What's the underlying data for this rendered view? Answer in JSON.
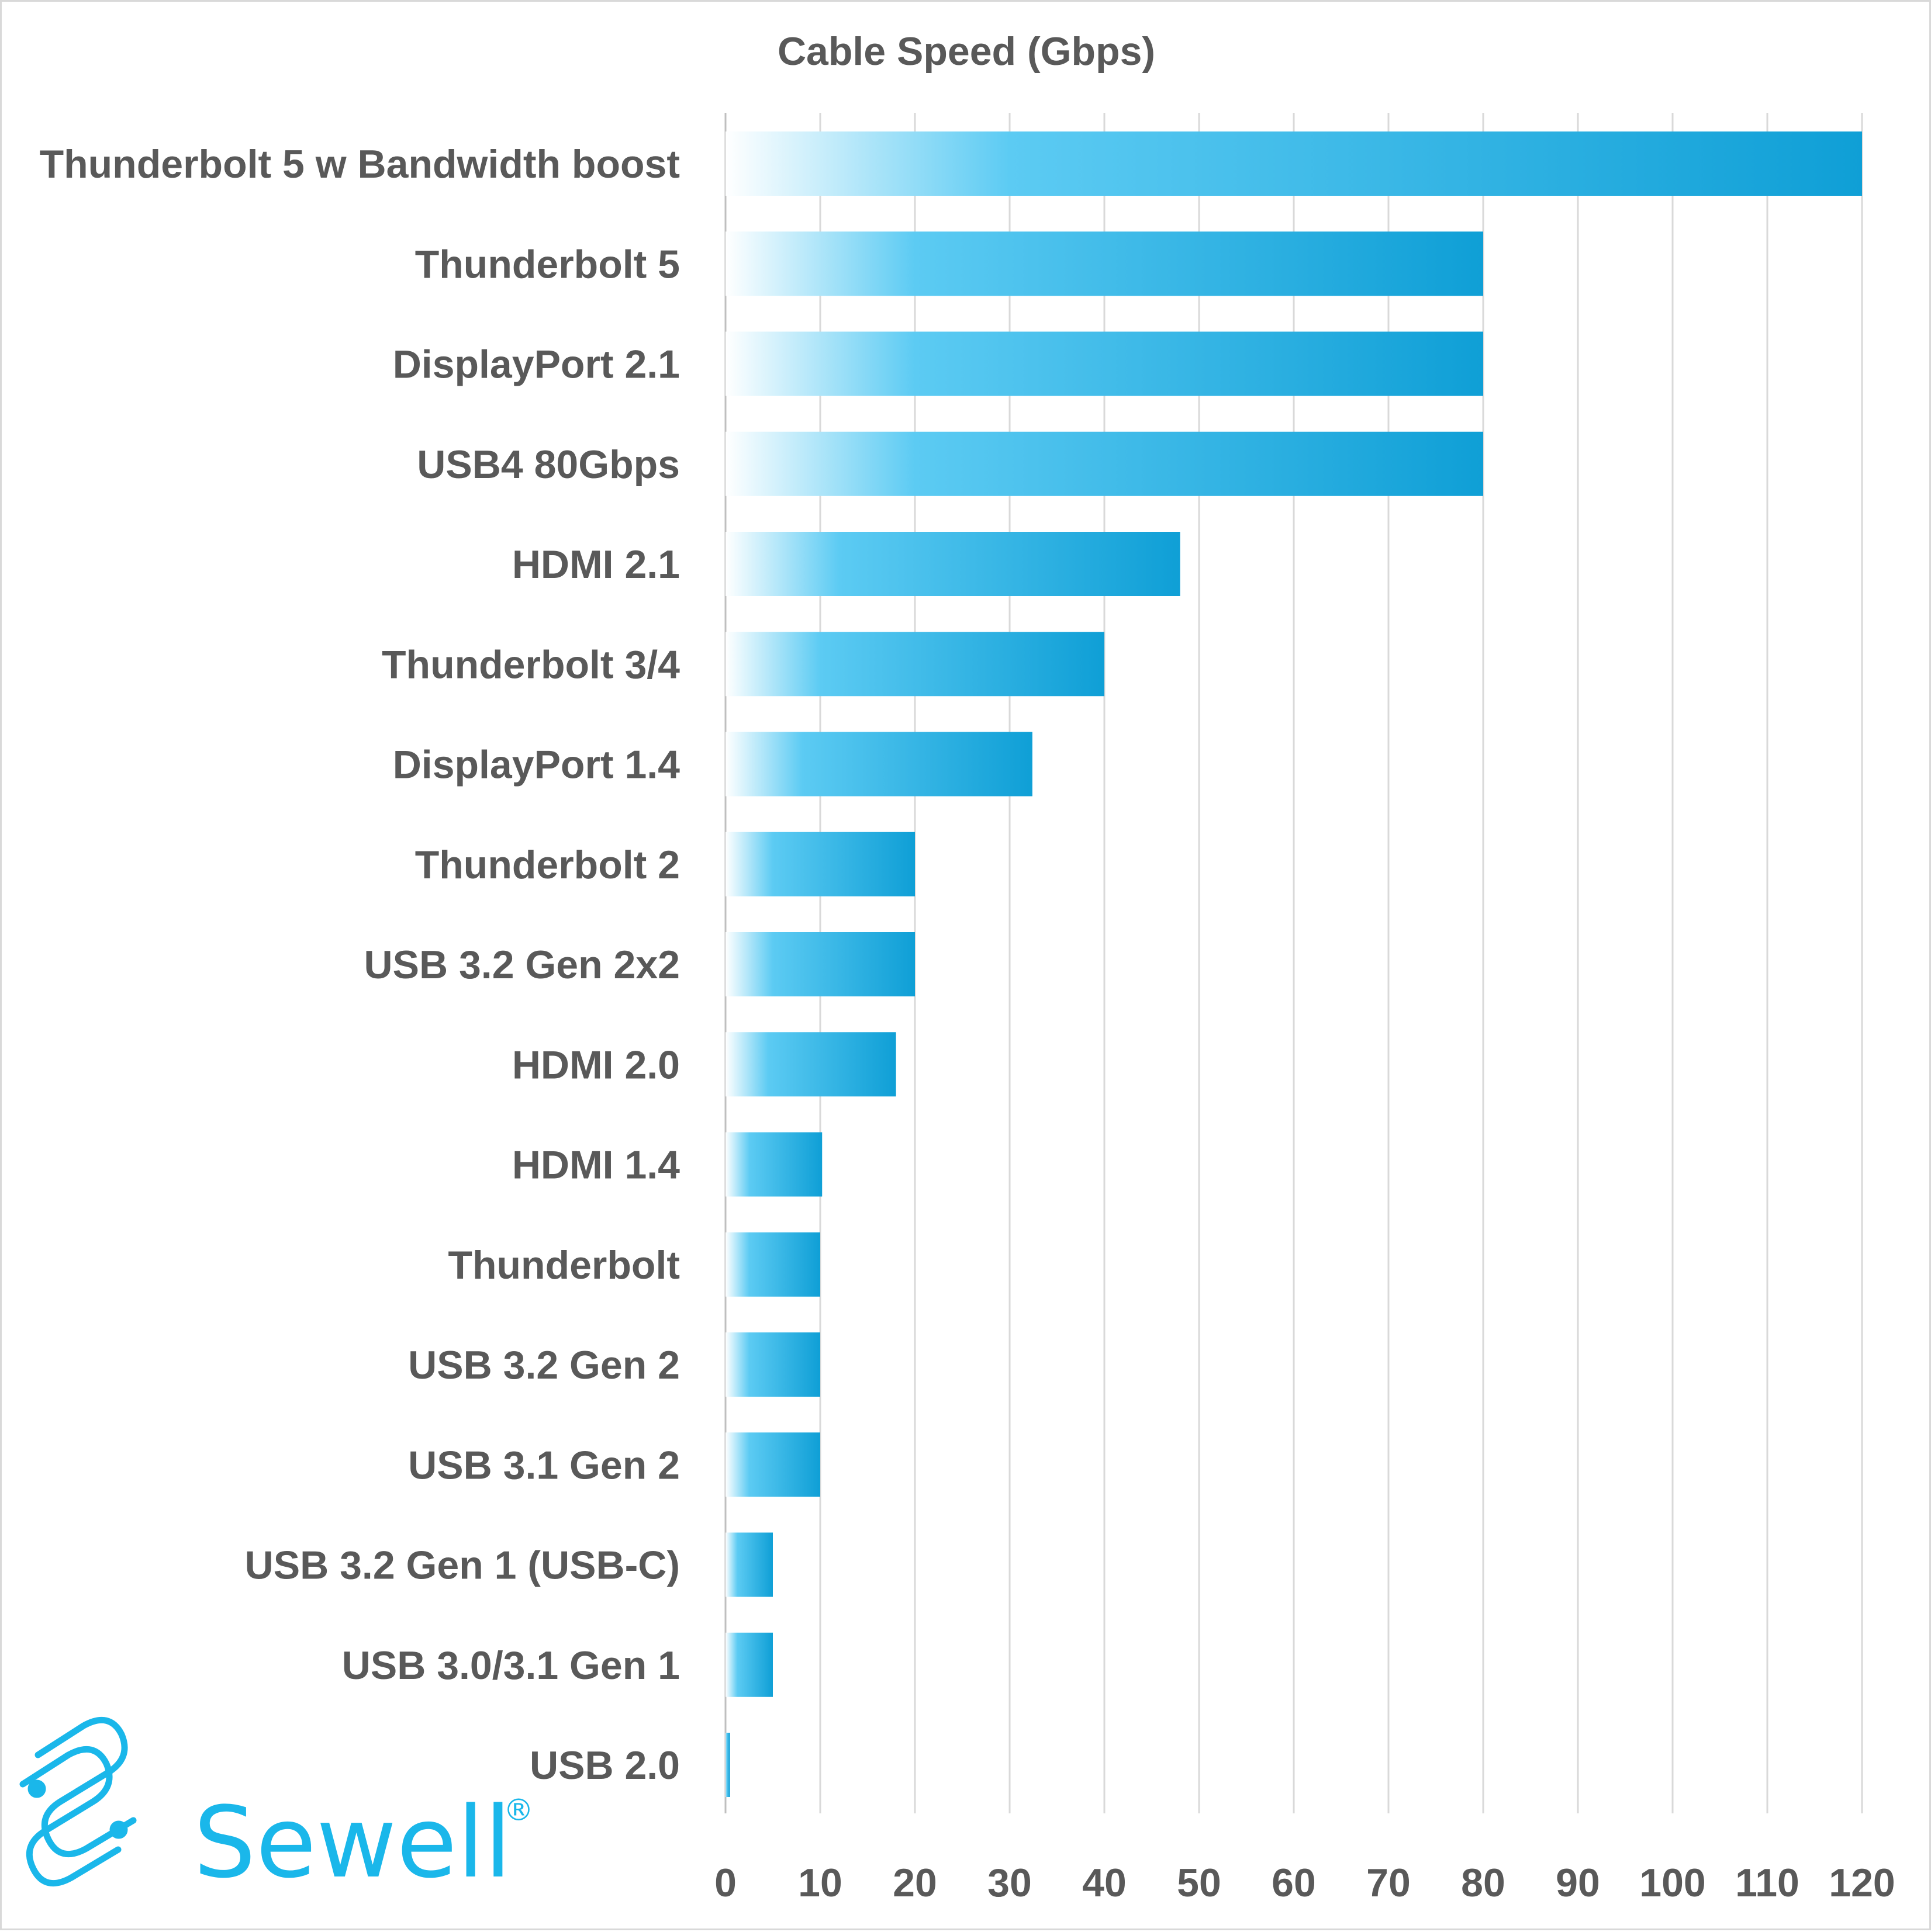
{
  "chart_data": {
    "type": "bar",
    "orientation": "horizontal",
    "title": "Cable Speed (Gbps)",
    "xlabel": "",
    "ylabel": "",
    "xlim": [
      0,
      120
    ],
    "x_ticks": [
      0,
      10,
      20,
      30,
      40,
      50,
      60,
      70,
      80,
      90,
      100,
      110,
      120
    ],
    "grid": "vertical",
    "legend": "none",
    "bar_color": "#0f9fd6",
    "bar_gradient_start": "#ffffff",
    "categories": [
      "Thunderbolt 5 w Bandwidth boost",
      "Thunderbolt 5",
      "DisplayPort 2.1",
      "USB4 80Gbps",
      "HDMI 2.1",
      "Thunderbolt 3/4",
      "DisplayPort 1.4",
      "Thunderbolt 2",
      "USB 3.2 Gen 2x2",
      "HDMI 2.0",
      "HDMI 1.4",
      "Thunderbolt",
      "USB 3.2 Gen 2",
      "USB 3.1 Gen 2",
      "USB 3.2 Gen 1 (USB-C)",
      "USB 3.0/3.1 Gen 1",
      "USB 2.0"
    ],
    "values": [
      120,
      80,
      80,
      80,
      48,
      40,
      32.4,
      20,
      20,
      18,
      10.2,
      10,
      10,
      10,
      5,
      5,
      0.48
    ]
  },
  "logo": {
    "text": "Sewell",
    "registered": "®",
    "color": "#1ab7ea",
    "icon": "chain-link-s-icon"
  }
}
